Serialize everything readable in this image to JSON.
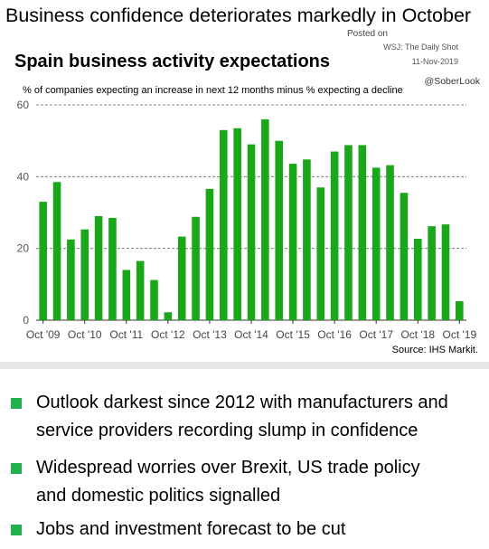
{
  "headline": "Business confidence deteriorates markedly in October",
  "attribution": {
    "posted": "Posted on",
    "source": "WSJ: The Daily Shot",
    "date": "11-Nov-2019",
    "handle": "@SoberLook"
  },
  "colors": {
    "bar": "#1aa71a",
    "bullet": "#22b14c",
    "grid": "#666666"
  },
  "chart_data": {
    "type": "bar",
    "title": "Spain business activity expectations",
    "subtitle": "% of companies expecting an increase in next 12 months minus % expecting a decline",
    "source": "Source: IHS Markit.",
    "ylim": [
      0,
      60
    ],
    "yticks": [
      "0",
      "20",
      "40",
      "60"
    ],
    "grid": "dashed horizontal at 20, 40, 60",
    "xlabels": [
      "Oct '09",
      "Oct '10",
      "Oct '11",
      "Oct '12",
      "Oct '13",
      "Oct '14",
      "Oct '15",
      "Oct '16",
      "Oct '17",
      "Oct '18",
      "Oct '19"
    ],
    "values": [
      33,
      38.5,
      22.5,
      25.3,
      29,
      28.5,
      14,
      16.5,
      11.2,
      2.2,
      23.3,
      28.8,
      36.6,
      53,
      53.5,
      49,
      56,
      50,
      43.6,
      44.8,
      37,
      47,
      48.8,
      48.8,
      42.5,
      43.2,
      35.5,
      22.7,
      26.2,
      26.7,
      5.3
    ]
  },
  "bullets": [
    {
      "text_line1": "Outlook darkest since 2012 with manufacturers and",
      "text_line2": "service providers recording slump in confidence"
    },
    {
      "text_line1": "Widespread worries over Brexit, US trade policy",
      "text_line2": "and domestic politics signalled"
    },
    {
      "text_line1": "Jobs and investment forecast to be cut",
      "text_line2": ""
    }
  ]
}
